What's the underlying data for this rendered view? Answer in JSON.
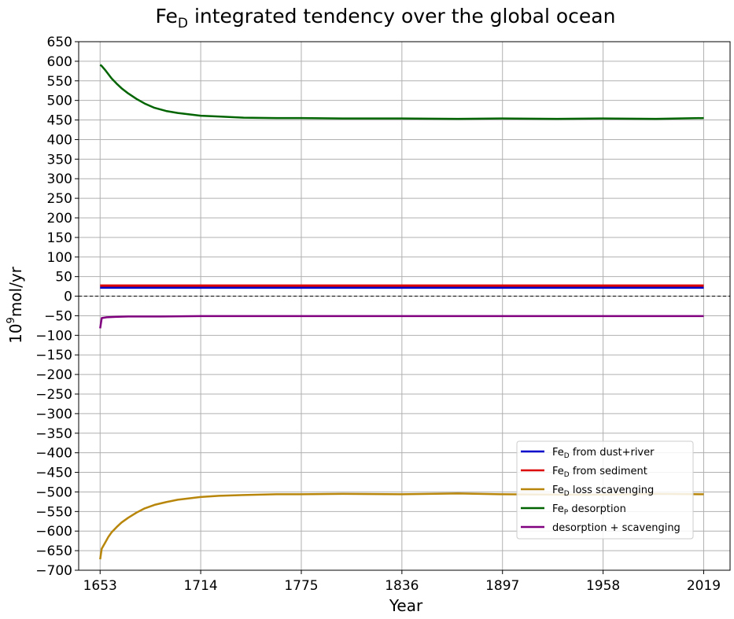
{
  "chart_data": {
    "type": "line",
    "title_main": "Fe",
    "title_sub": "D",
    "title_rest": " integrated tendency over the global ocean",
    "xlabel": "Year",
    "ylabel_base": "10",
    "ylabel_exp": "9",
    "ylabel_unit": "mol/yr",
    "xlim": [
      1640,
      2035
    ],
    "ylim": [
      -700,
      650
    ],
    "xticks": [
      1653,
      1714,
      1775,
      1836,
      1897,
      1958,
      2019
    ],
    "yticks": [
      -700,
      -650,
      -600,
      -550,
      -500,
      -450,
      -400,
      -350,
      -300,
      -250,
      -200,
      -150,
      -100,
      -50,
      0,
      50,
      100,
      150,
      200,
      250,
      300,
      350,
      400,
      450,
      500,
      550,
      600,
      650
    ],
    "grid": true,
    "zero_line": {
      "y": 0,
      "style": "dashed",
      "color": "#000000"
    },
    "legend_position": "lower-right",
    "series": [
      {
        "name_main": "Fe",
        "name_sub": "D",
        "name_rest": " from dust+river",
        "color": "#0000cc",
        "points": [
          [
            1653,
            22
          ],
          [
            2019,
            22
          ]
        ]
      },
      {
        "name_main": "Fe",
        "name_sub": "D",
        "name_rest": " from sediment",
        "color": "#dd0000",
        "points": [
          [
            1653,
            27
          ],
          [
            2019,
            27
          ]
        ]
      },
      {
        "name_main": "Fe",
        "name_sub": "D",
        "name_rest": " loss scavenging",
        "color": "#b8860b",
        "points": [
          [
            1653,
            -672
          ],
          [
            1654,
            -645
          ],
          [
            1656,
            -630
          ],
          [
            1658,
            -615
          ],
          [
            1660,
            -603
          ],
          [
            1663,
            -590
          ],
          [
            1666,
            -578
          ],
          [
            1670,
            -566
          ],
          [
            1675,
            -553
          ],
          [
            1680,
            -542
          ],
          [
            1686,
            -533
          ],
          [
            1693,
            -526
          ],
          [
            1700,
            -520
          ],
          [
            1708,
            -516
          ],
          [
            1714,
            -513
          ],
          [
            1725,
            -510
          ],
          [
            1740,
            -508
          ],
          [
            1760,
            -506
          ],
          [
            1775,
            -506
          ],
          [
            1800,
            -505
          ],
          [
            1836,
            -506
          ],
          [
            1870,
            -504
          ],
          [
            1897,
            -506
          ],
          [
            1930,
            -507
          ],
          [
            1958,
            -507
          ],
          [
            1990,
            -505
          ],
          [
            2019,
            -506
          ]
        ]
      },
      {
        "name_main": "Fe",
        "name_sub": "P",
        "name_rest": " desorption",
        "color": "#006400",
        "points": [
          [
            1653,
            591
          ],
          [
            1654,
            588
          ],
          [
            1656,
            578
          ],
          [
            1658,
            567
          ],
          [
            1660,
            556
          ],
          [
            1663,
            543
          ],
          [
            1666,
            531
          ],
          [
            1670,
            518
          ],
          [
            1675,
            504
          ],
          [
            1680,
            492
          ],
          [
            1686,
            481
          ],
          [
            1693,
            473
          ],
          [
            1700,
            468
          ],
          [
            1708,
            464
          ],
          [
            1714,
            461
          ],
          [
            1725,
            459
          ],
          [
            1740,
            456
          ],
          [
            1760,
            455
          ],
          [
            1775,
            455
          ],
          [
            1800,
            454
          ],
          [
            1836,
            454
          ],
          [
            1870,
            453
          ],
          [
            1897,
            454
          ],
          [
            1930,
            453
          ],
          [
            1958,
            454
          ],
          [
            1990,
            453
          ],
          [
            2019,
            455
          ]
        ]
      },
      {
        "name_main": "",
        "name_sub": "",
        "name_rest": "desorption + scavenging",
        "color": "#800080",
        "points": [
          [
            1653,
            -82
          ],
          [
            1654,
            -56
          ],
          [
            1657,
            -54
          ],
          [
            1662,
            -53
          ],
          [
            1670,
            -52
          ],
          [
            1690,
            -52
          ],
          [
            1714,
            -51
          ],
          [
            1760,
            -51
          ],
          [
            1800,
            -51
          ],
          [
            1836,
            -51
          ],
          [
            1897,
            -51
          ],
          [
            1958,
            -51
          ],
          [
            2019,
            -51
          ]
        ]
      }
    ]
  }
}
